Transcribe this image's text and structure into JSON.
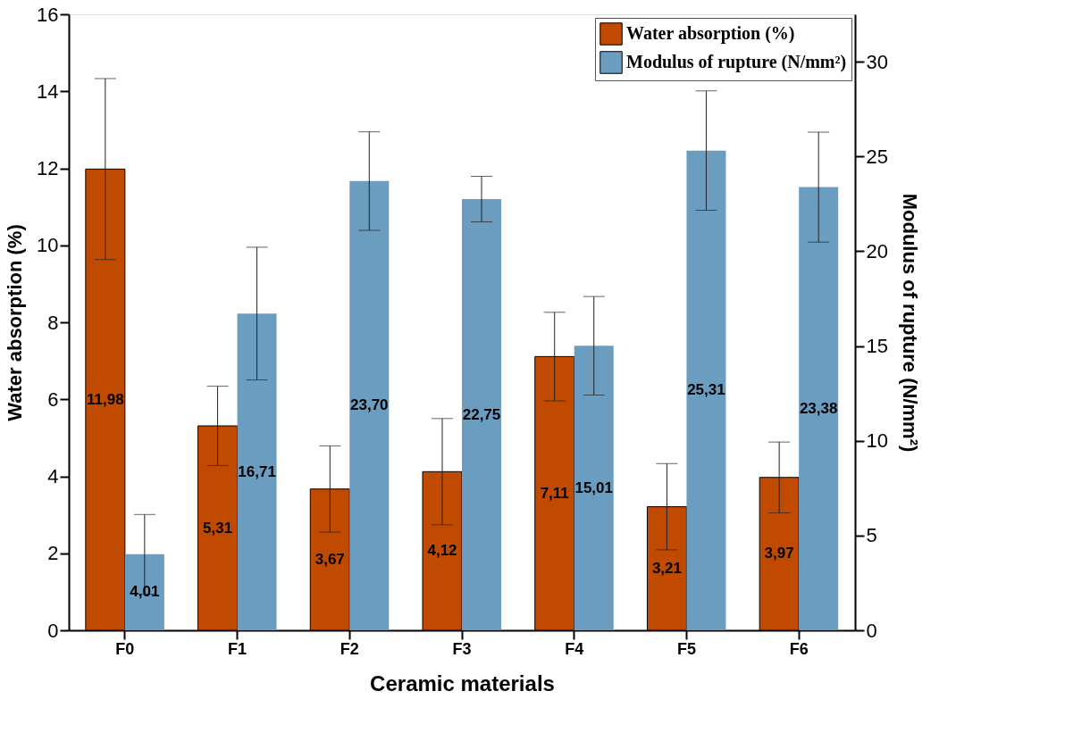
{
  "chart_data": {
    "type": "bar",
    "xlabel": "Ceramic materials",
    "ylabel": "Water absorption (%)",
    "y2label": "Modulus of rupture (N/mm²)",
    "categories": [
      "F0",
      "F1",
      "F2",
      "F3",
      "F4",
      "F5",
      "F6"
    ],
    "series": [
      {
        "name": "Water absorption (%)",
        "color": "#c04a00",
        "values": [
          11.98,
          5.31,
          3.67,
          4.12,
          7.11,
          3.21,
          3.97
        ],
        "errors": [
          2.35,
          1.03,
          1.12,
          1.38,
          1.15,
          1.12,
          0.92
        ],
        "value_labels": [
          "11,98",
          "5,31",
          "3,67",
          "4,12",
          "7,11",
          "3,21",
          "3,97"
        ]
      },
      {
        "name": "Modulus of rupture (N/mm²)",
        "color": "#6b9dc0",
        "axis": "y2",
        "values": [
          4.01,
          16.71,
          23.7,
          22.75,
          15.01,
          25.31,
          23.38
        ],
        "errors": [
          2.1,
          3.5,
          2.6,
          1.2,
          2.6,
          3.15,
          2.9
        ],
        "value_labels": [
          "4,01",
          "16,71",
          "23,70",
          "22,75",
          "15,01",
          "25,31",
          "23,38"
        ]
      }
    ],
    "ylim": [
      0,
      16
    ],
    "yticks": [
      0,
      2,
      4,
      6,
      8,
      10,
      12,
      14,
      16
    ],
    "y2lim": [
      0,
      32.5
    ],
    "y2ticks": [
      0,
      5,
      10,
      15,
      20,
      25,
      30
    ],
    "grid": false,
    "legend": "top right"
  }
}
